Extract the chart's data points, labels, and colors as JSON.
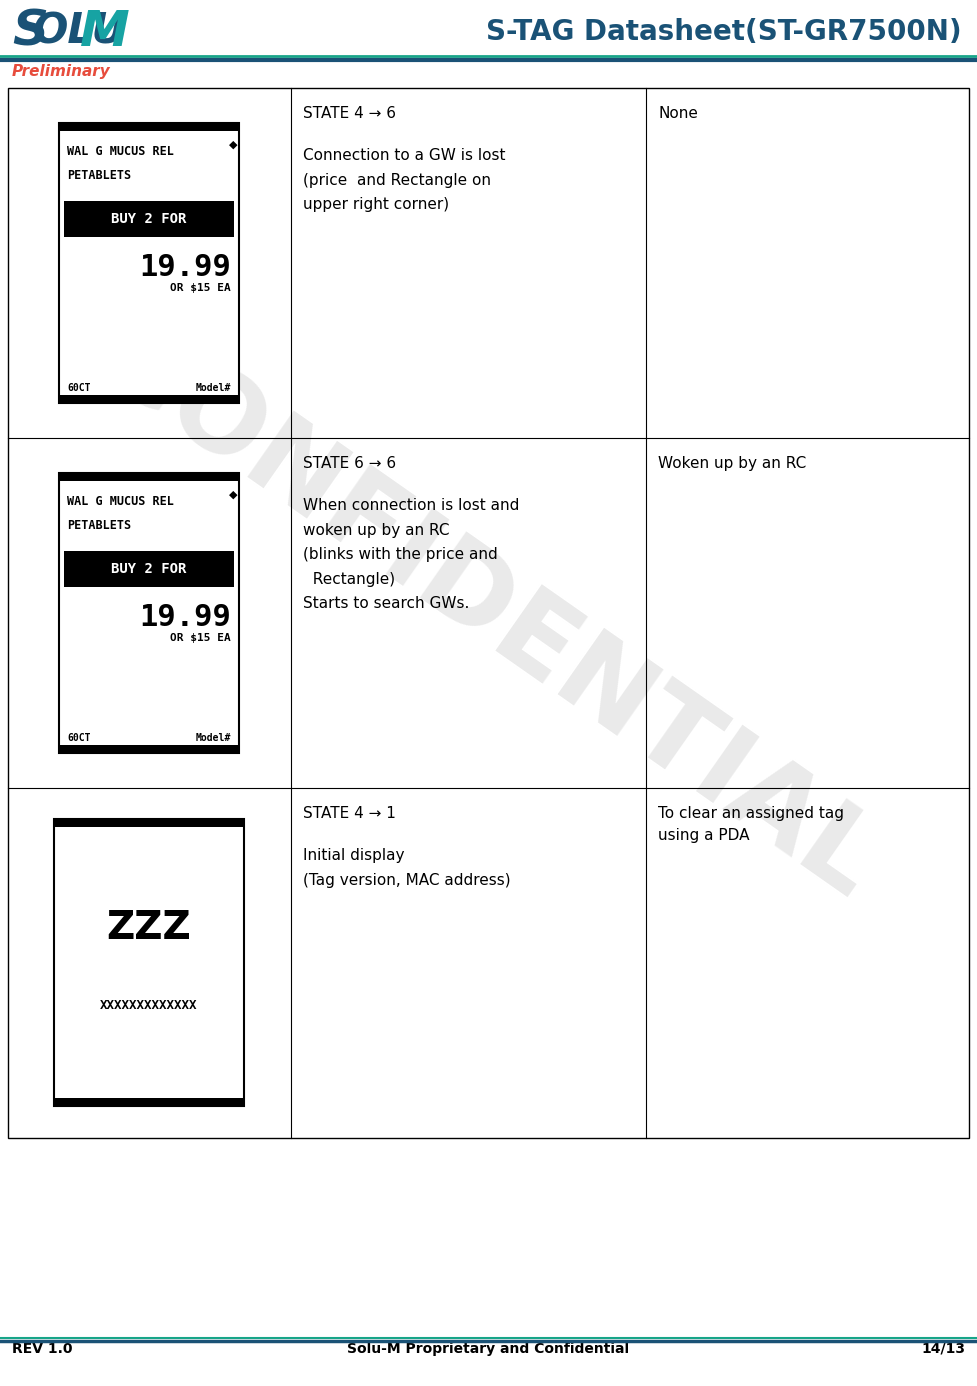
{
  "title": "S-TAG Datasheet(ST-GR7500N)",
  "preliminary": "Preliminary",
  "footer_left": "REV 1.0",
  "footer_center": "Solu-M Proprietary and Confidential",
  "footer_right": "14/13",
  "header_line_color": "#1a5276",
  "header_line_color2": "#17a589",
  "title_color": "#1a5276",
  "preliminary_color": "#e74c3c",
  "rows": [
    {
      "state": "STATE 4 → 6",
      "description": "Connection to a GW is lost\n(price  and Rectangle on\nupper right corner)",
      "action": "None",
      "image_type": "price_tag"
    },
    {
      "state": "STATE 6 → 6",
      "description": "When connection is lost and\nwoken up by an RC\n(blinks with the price and\n  Rectangle)\nStarts to search GWs.",
      "action": "Woken up by an RC",
      "image_type": "price_tag"
    },
    {
      "state": "STATE 4 → 1",
      "description": "Initial display\n(Tag version, MAC address)",
      "action": "To clear an assigned tag\nusing a PDA",
      "image_type": "zzz_tag"
    }
  ],
  "confidential_color": "#aaaaaa",
  "watermark_text": "CONFIDENTIAL"
}
